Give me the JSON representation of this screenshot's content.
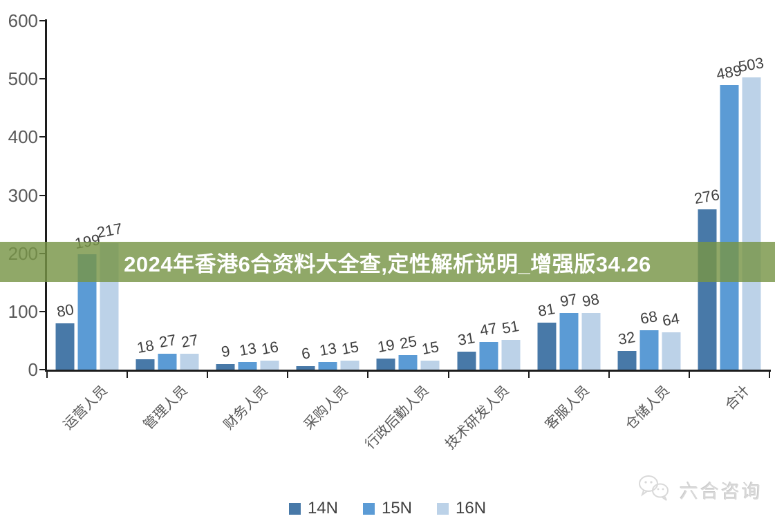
{
  "banner": {
    "text": "2024年香港6合资料大全查,定性解析说明_增强版34.26",
    "bg_color": "rgba(120,149,71,0.82)",
    "text_color": "#ffffff"
  },
  "watermark": {
    "text": "六合咨询",
    "icon": "wechat-chat-bubbles-icon",
    "color": "#d9d9d9"
  },
  "chart_data": {
    "type": "bar",
    "title": "",
    "xlabel": "",
    "ylabel": "",
    "categories": [
      "运营人员",
      "管理人员",
      "财务人员",
      "采购人员",
      "行政后勤人员",
      "技术研发人员",
      "客服人员",
      "仓储人员",
      "合计"
    ],
    "series": [
      {
        "name": "14N",
        "color": "#4879A8",
        "values": [
          80,
          18,
          9,
          6,
          19,
          31,
          81,
          32,
          276
        ]
      },
      {
        "name": "15N",
        "color": "#5B9BD5",
        "values": [
          199,
          27,
          13,
          13,
          25,
          47,
          97,
          68,
          489
        ]
      },
      {
        "name": "16N",
        "color": "#BCD2E8",
        "values": [
          217,
          27,
          16,
          15,
          15,
          51,
          98,
          64,
          503
        ]
      }
    ],
    "ylim": [
      0,
      600
    ],
    "yticks": [
      0,
      100,
      200,
      300,
      400,
      500,
      600
    ],
    "grid": false,
    "legend_position": "bottom",
    "axis_color": "#1d1d1d",
    "tick_label_color": "#595959",
    "value_label_color": "#3f3f3f"
  }
}
